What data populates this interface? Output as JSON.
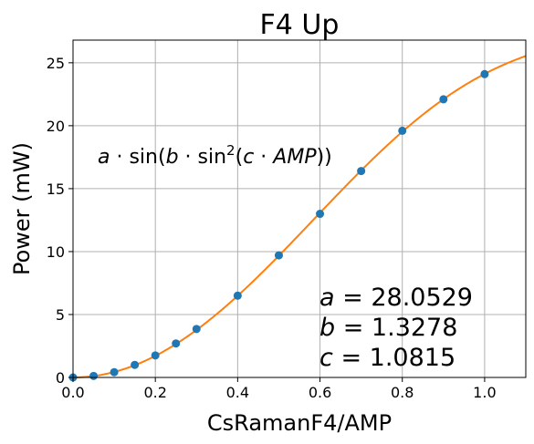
{
  "chart_data": {
    "type": "scatter",
    "title": "F4 Up",
    "xlabel": "CsRamanF4/AMP",
    "ylabel": "Power (mW)",
    "xlim": [
      0.0,
      1.1
    ],
    "ylim": [
      0,
      26.8
    ],
    "xticks": [
      0.0,
      0.2,
      0.4,
      0.6,
      0.8,
      1.0
    ],
    "yticks": [
      0,
      5,
      10,
      15,
      20,
      25
    ],
    "grid": true,
    "series": [
      {
        "kind": "points",
        "color": "#1f77b4",
        "x": [
          0.0,
          0.05,
          0.1,
          0.15,
          0.2,
          0.25,
          0.3,
          0.4,
          0.5,
          0.6,
          0.7,
          0.8,
          0.9,
          1.0
        ],
        "y": [
          0.0,
          0.12,
          0.42,
          1.0,
          1.75,
          2.7,
          3.85,
          6.5,
          9.7,
          13.0,
          16.4,
          19.6,
          22.1,
          24.1
        ]
      },
      {
        "kind": "fit-curve",
        "color": "#ff7f0e",
        "a": 28.0529,
        "b": 1.3278,
        "c": 1.0815
      }
    ],
    "annotations": {
      "formula": {
        "a": "a",
        "dot1": " · sin(",
        "b": "b",
        "dot2": " · sin",
        "sup": "2",
        "open": "(",
        "c": "c",
        "dot3": " · ",
        "amp": "AMP",
        "close": "))"
      },
      "params": [
        {
          "name": "a",
          "text": " = 28.0529"
        },
        {
          "name": "b",
          "text": " = 1.3278"
        },
        {
          "name": "c",
          "text": " = 1.0815"
        }
      ]
    }
  }
}
